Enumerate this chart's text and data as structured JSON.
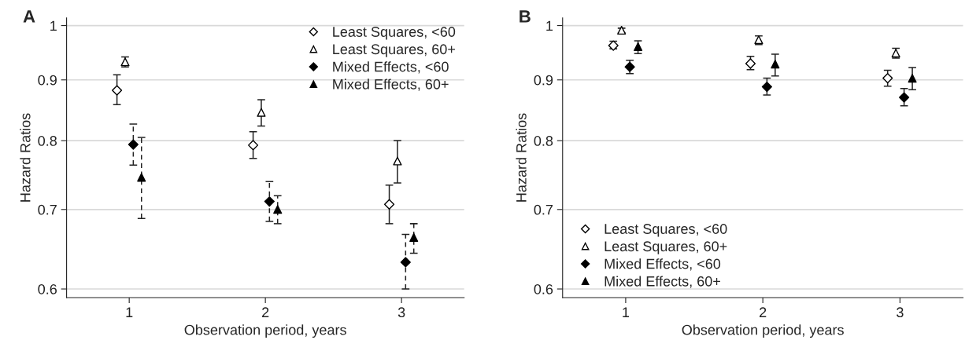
{
  "chart_data": [
    {
      "type": "scatter",
      "title": "A",
      "xlabel": "Observation period, years",
      "ylabel": "Hazard Ratios",
      "log": "y",
      "xlim": [
        0.54,
        3.46
      ],
      "xticks": [
        1,
        2,
        3
      ],
      "ylim": [
        0.59,
        1.015
      ],
      "yticks": [
        0.6,
        0.7,
        0.8,
        0.9,
        1
      ],
      "grid": "y",
      "legend": "top right",
      "series": [
        {
          "name": "Least Squares, <60",
          "color": "#ffffff",
          "marker": "diamond",
          "line_style": "solid",
          "x": [
            0.91,
            1.91,
            2.91
          ],
          "values": [
            0.882,
            0.793,
            0.707
          ],
          "errors": [
            [
              0.858,
              0.909
            ],
            [
              0.773,
              0.814
            ],
            [
              0.681,
              0.734
            ]
          ]
        },
        {
          "name": "Least Squares, 60+",
          "color": "#ffffff",
          "marker": "triangle",
          "line_style": "solid",
          "x": [
            0.97,
            1.97,
            2.97
          ],
          "values": [
            0.932,
            0.845,
            0.769
          ],
          "errors": [
            [
              0.923,
              0.941
            ],
            [
              0.823,
              0.866
            ],
            [
              0.737,
              0.8
            ]
          ]
        },
        {
          "name": "Mixed Effects, <60",
          "color": "#000000",
          "marker": "diamond",
          "line_style": "dashed",
          "x": [
            1.03,
            2.03,
            3.03
          ],
          "values": [
            0.794,
            0.711,
            0.632
          ],
          "errors": [
            [
              0.763,
              0.826
            ],
            [
              0.684,
              0.739
            ],
            [
              0.6,
              0.667
            ]
          ]
        },
        {
          "name": "Mixed Effects, 60+",
          "color": "#000000",
          "marker": "triangle",
          "line_style": "dashed",
          "x": [
            1.09,
            2.09,
            3.09
          ],
          "values": [
            0.745,
            0.7,
            0.663
          ],
          "errors": [
            [
              0.688,
              0.805
            ],
            [
              0.681,
              0.719
            ],
            [
              0.643,
              0.681
            ]
          ]
        }
      ]
    },
    {
      "type": "scatter",
      "title": "B",
      "xlabel": "Observation period, years",
      "ylabel": "Hazard Ratios",
      "log": "y",
      "xlim": [
        0.54,
        3.46
      ],
      "xticks": [
        1,
        2,
        3
      ],
      "ylim": [
        0.59,
        1.015
      ],
      "yticks": [
        0.6,
        0.7,
        0.8,
        0.9,
        1
      ],
      "grid": "y",
      "legend": "bottom left",
      "series": [
        {
          "name": "Least Squares, <60",
          "color": "#ffffff",
          "marker": "diamond",
          "line_style": "solid",
          "x": [
            0.91,
            1.91,
            2.91
          ],
          "values": [
            0.962,
            0.929,
            0.903
          ],
          "errors": [
            [
              0.956,
              0.97
            ],
            [
              0.918,
              0.942
            ],
            [
              0.889,
              0.917
            ]
          ]
        },
        {
          "name": "Least Squares, 60+",
          "color": "#ffffff",
          "marker": "triangle",
          "line_style": "solid",
          "x": [
            0.97,
            1.97,
            2.97
          ],
          "values": [
            0.991,
            0.973,
            0.948
          ],
          "errors": [
            [
              0.986,
              0.995
            ],
            [
              0.964,
              0.98
            ],
            [
              0.939,
              0.957
            ]
          ]
        },
        {
          "name": "Mixed Effects, <60",
          "color": "#000000",
          "marker": "diamond",
          "line_style": "solid",
          "x": [
            1.03,
            2.03,
            3.03
          ],
          "values": [
            0.923,
            0.888,
            0.87
          ],
          "errors": [
            [
              0.911,
              0.935
            ],
            [
              0.874,
              0.903
            ],
            [
              0.856,
              0.885
            ]
          ]
        },
        {
          "name": "Mixed Effects, 60+",
          "color": "#000000",
          "marker": "triangle",
          "line_style": "solid",
          "x": [
            1.09,
            2.09,
            3.09
          ],
          "values": [
            0.96,
            0.928,
            0.903
          ],
          "errors": [
            [
              0.947,
              0.971
            ],
            [
              0.907,
              0.946
            ],
            [
              0.883,
              0.922
            ]
          ]
        }
      ]
    }
  ]
}
